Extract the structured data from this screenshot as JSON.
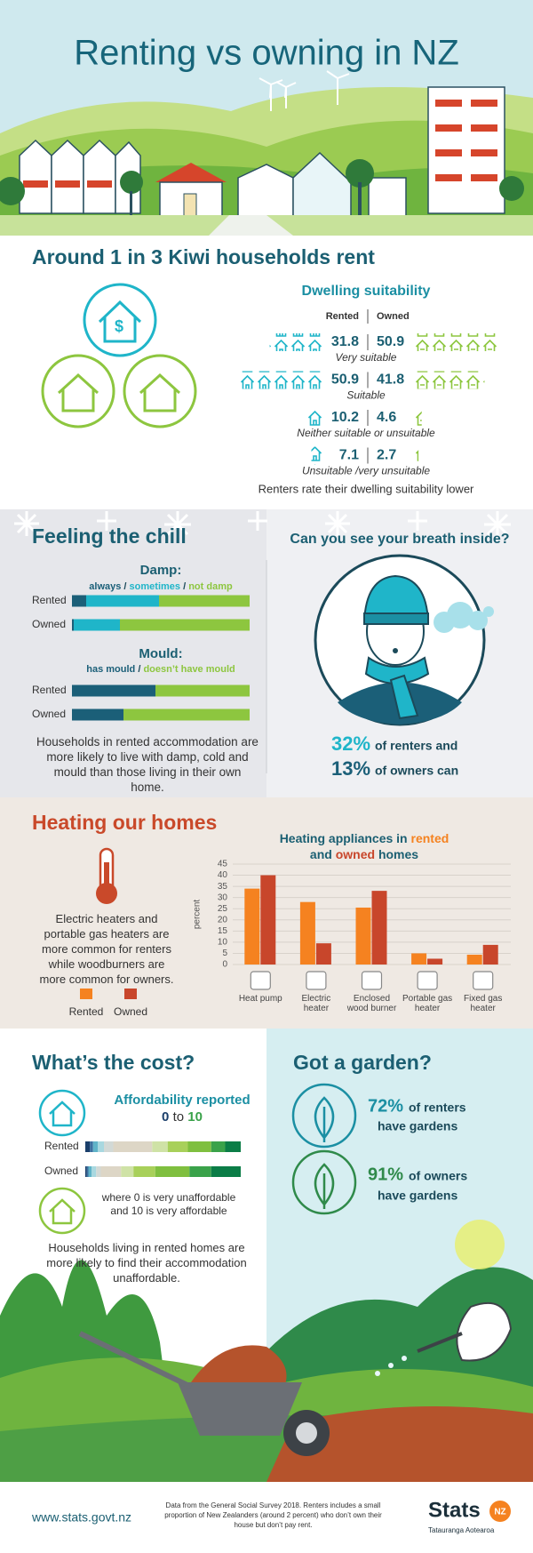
{
  "header": {
    "title": "Renting vs owning in NZ"
  },
  "households": {
    "heading": "Around 1 in 3 Kiwi households rent"
  },
  "suitability": {
    "title": "Dwelling suitability",
    "rented_label": "Rented",
    "owned_label": "Owned",
    "rows": [
      {
        "label": "Very suitable",
        "rented": 31.8,
        "owned": 50.9
      },
      {
        "label": "Suitable",
        "rented": 50.9,
        "owned": 41.8
      },
      {
        "label": "Neither suitable or unsuitable",
        "rented": 10.2,
        "owned": 4.6
      },
      {
        "label": "Unsuitable /very unsuitable",
        "rented": 7.1,
        "owned": 2.7
      }
    ],
    "note": "Renters rate their dwelling suitability lower"
  },
  "chill": {
    "heading": "Feeling the chill",
    "paragraph": "Households in rented accommodation are more likely to live with damp, cold and mould than those living in their own home."
  },
  "breath": {
    "title": "Can you see your breath inside?",
    "renters_pct": "32%",
    "renters_text": "of renters and",
    "owners_pct": "13%",
    "owners_text": "of owners can"
  },
  "heating": {
    "heading": "Heating our homes",
    "paragraph": "Electric heaters and portable gas heaters are more common for renters while woodburners are more common for owners."
  },
  "cost": {
    "heading": "What’s the cost?",
    "note": "where 0 is very unaffordable and 10 is very affordable",
    "paragraph": "Households living in rented homes are more likely to find their accommodation unaffordable."
  },
  "garden": {
    "heading": "Got a garden?",
    "renters_pct": "72%",
    "renters_text": "of renters",
    "renters_text2": "have gardens",
    "owners_pct": "91%",
    "owners_text": "of owners",
    "owners_text2": "have gardens"
  },
  "footer": {
    "url": "www.stats.govt.nz",
    "note": "Data from the General Social Survey 2018. Renters includes a small proportion of New Zealanders (around 2 percent) who don’t own their house but don’t pay rent.",
    "logo": "Stats",
    "logo_badge": "NZ",
    "logo_sub": "Tatauranga Aotearoa"
  },
  "chart_data": [
    {
      "type": "stacked-bar-h",
      "title": "Damp:",
      "legend_separator": " / ",
      "categories": [
        "Rented",
        "Owned"
      ],
      "xlim": [
        0,
        100
      ],
      "series": [
        {
          "name": "always",
          "color": "#1b5f78",
          "values": [
            8,
            1
          ]
        },
        {
          "name": "sometimes",
          "color": "#1fb5c9",
          "values": [
            41,
            26
          ]
        },
        {
          "name": "not damp",
          "color": "#8dc63f",
          "values": [
            51,
            73
          ]
        }
      ]
    },
    {
      "type": "stacked-bar-h",
      "title": "Mould:",
      "legend_separator": " / ",
      "categories": [
        "Rented",
        "Owned"
      ],
      "xlim": [
        0,
        100
      ],
      "series": [
        {
          "name": "has mould",
          "color": "#1b5f78",
          "values": [
            47,
            29
          ]
        },
        {
          "name": "doesn’t have mould",
          "color": "#8dc63f",
          "values": [
            53,
            71
          ]
        }
      ]
    },
    {
      "type": "bar",
      "title": [
        "Heating appliances in",
        "rented",
        "and",
        "owned",
        "homes"
      ],
      "y_label": "percent",
      "categories": [
        "Heat pump",
        "Electric heater",
        "Enclosed wood burner",
        "Portable gas heater",
        "Fixed gas heater"
      ],
      "ylim": [
        0,
        45
      ],
      "yticks": [
        0,
        5,
        10,
        15,
        20,
        25,
        30,
        35,
        40,
        45
      ],
      "grid": true,
      "series": [
        {
          "name": "Rented",
          "color": "#f58220",
          "values": [
            34,
            28,
            25.5,
            5,
            4.4
          ]
        },
        {
          "name": "Owned",
          "color": "#c8462b",
          "values": [
            40,
            9.5,
            33,
            2.6,
            8.8
          ]
        }
      ]
    },
    {
      "type": "stacked-bar-h",
      "title": [
        "Affordability reported",
        "0",
        "to",
        "10"
      ],
      "categories": [
        "Rented",
        "Owned"
      ],
      "xlim": [
        0,
        100
      ],
      "series": [
        {
          "color": "#1b3f6b",
          "values": [
            3,
            1
          ]
        },
        {
          "color": "#3b6fa0",
          "values": [
            2,
            1
          ]
        },
        {
          "color": "#5fb3c8",
          "values": [
            3,
            2
          ]
        },
        {
          "color": "#a8d8e0",
          "values": [
            4,
            3
          ]
        },
        {
          "color": "#d2d9d6",
          "values": [
            6,
            3
          ]
        },
        {
          "color": "#ddd6c6",
          "values": [
            25,
            13
          ]
        },
        {
          "color": "#cfe2a6",
          "values": [
            10,
            8
          ]
        },
        {
          "color": "#a8d05a",
          "values": [
            13,
            14
          ]
        },
        {
          "color": "#7fbf3f",
          "values": [
            15,
            22
          ]
        },
        {
          "color": "#3aa24a",
          "values": [
            9,
            14
          ]
        },
        {
          "color": "#0b7d47",
          "values": [
            10,
            19
          ]
        }
      ]
    }
  ]
}
